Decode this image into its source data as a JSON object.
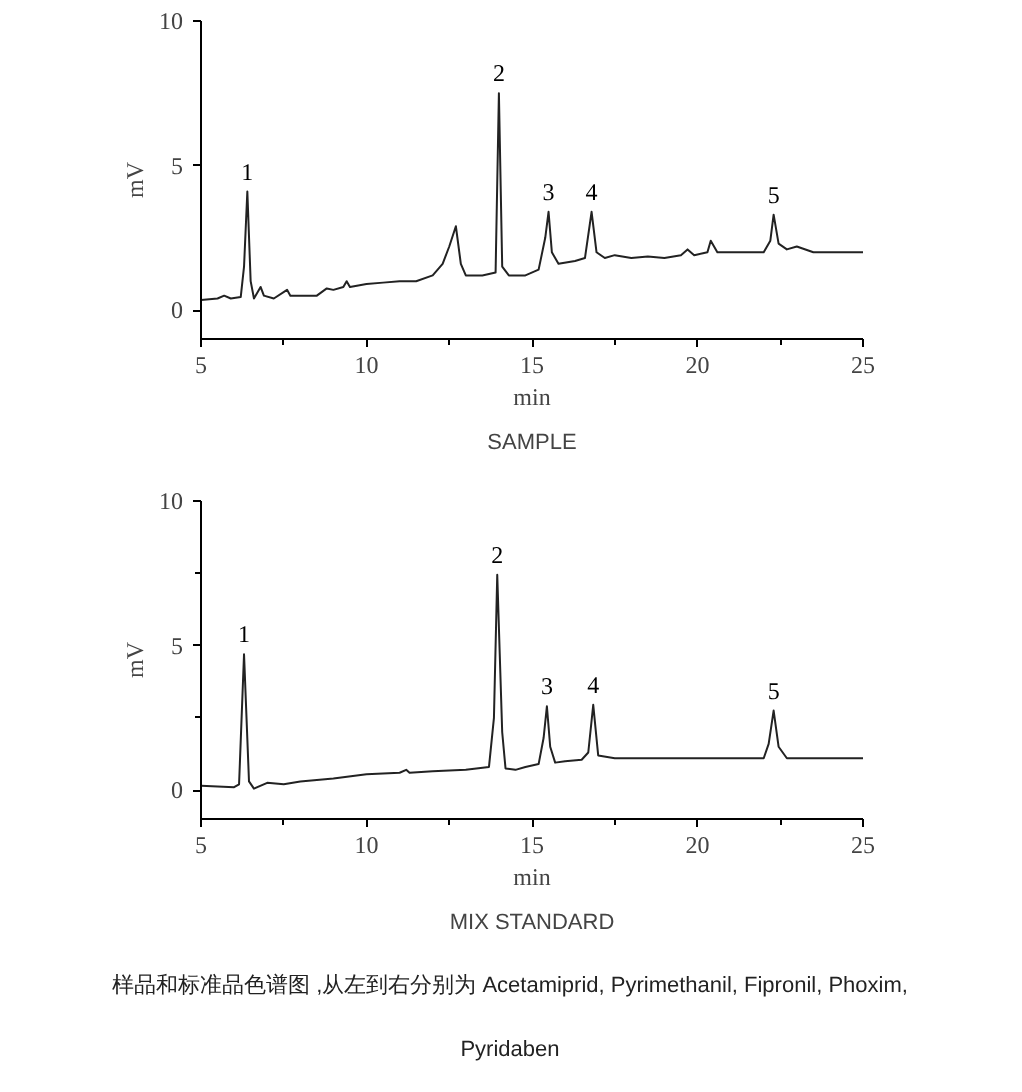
{
  "chart_data": [
    {
      "type": "line",
      "title": "SAMPLE",
      "xlabel": "min",
      "ylabel": "mV",
      "color": "#222222",
      "xlim": [
        5,
        25
      ],
      "ylim": [
        -1,
        10
      ],
      "xticks": [
        5,
        {
          "value": 7.5,
          "label": null
        },
        10,
        {
          "value": 12.5,
          "label": null
        },
        15,
        {
          "value": 17.5,
          "label": null
        },
        20,
        {
          "value": 22.5,
          "label": null
        },
        25
      ],
      "yticks": [
        0,
        5,
        10
      ],
      "x": [
        5.0,
        5.5,
        5.7,
        5.9,
        6.2,
        6.3,
        6.4,
        6.5,
        6.6,
        6.8,
        6.9,
        7.2,
        7.6,
        7.7,
        8.0,
        8.5,
        8.8,
        9.0,
        9.3,
        9.4,
        9.5,
        10.0,
        10.5,
        11.0,
        11.5,
        12.0,
        12.3,
        12.5,
        12.7,
        12.85,
        13.0,
        13.5,
        13.9,
        14.0,
        14.1,
        14.3,
        14.8,
        15.2,
        15.4,
        15.5,
        15.6,
        15.8,
        16.3,
        16.6,
        16.8,
        16.95,
        17.2,
        17.5,
        18.0,
        18.5,
        19.0,
        19.5,
        19.7,
        19.9,
        20.3,
        20.4,
        20.6,
        21.0,
        21.5,
        22.0,
        22.2,
        22.3,
        22.45,
        22.7,
        23.0,
        23.5,
        24.0,
        24.5,
        25.0
      ],
      "values": [
        0.35,
        0.4,
        0.5,
        0.4,
        0.45,
        1.5,
        4.1,
        1.0,
        0.4,
        0.8,
        0.5,
        0.4,
        0.7,
        0.5,
        0.5,
        0.5,
        0.75,
        0.7,
        0.8,
        1.0,
        0.8,
        0.9,
        0.95,
        1.0,
        1.0,
        1.2,
        1.6,
        2.2,
        2.9,
        1.6,
        1.2,
        1.2,
        1.3,
        7.5,
        1.5,
        1.2,
        1.2,
        1.4,
        2.5,
        3.4,
        2.0,
        1.6,
        1.7,
        1.8,
        3.4,
        2.0,
        1.8,
        1.9,
        1.8,
        1.85,
        1.8,
        1.9,
        2.1,
        1.9,
        2.0,
        2.4,
        2.0,
        2.0,
        2.0,
        2.0,
        2.4,
        3.3,
        2.3,
        2.1,
        2.2,
        2.0,
        2.0,
        2.0,
        2.0
      ],
      "annotations": [
        {
          "text": "1",
          "x": 6.4,
          "y": 4.1
        },
        {
          "text": "2",
          "x": 14.0,
          "y": 7.5
        },
        {
          "text": "3",
          "x": 15.5,
          "y": 3.4
        },
        {
          "text": "4",
          "x": 16.8,
          "y": 3.4
        },
        {
          "text": "5",
          "x": 22.3,
          "y": 3.3
        }
      ]
    },
    {
      "type": "line",
      "title": "MIX STANDARD",
      "xlabel": "min",
      "ylabel": "mV",
      "color": "#222222",
      "xlim": [
        5,
        25
      ],
      "ylim": [
        -1,
        10
      ],
      "xticks": [
        5,
        {
          "value": 7.5,
          "label": null
        },
        10,
        {
          "value": 12.5,
          "label": null
        },
        15,
        {
          "value": 17.5,
          "label": null
        },
        20,
        {
          "value": 22.5,
          "label": null
        },
        25
      ],
      "yticks": [
        0,
        {
          "value": 2.5,
          "label": null
        },
        5,
        {
          "value": 7.5,
          "label": null
        },
        10
      ],
      "x": [
        5.0,
        5.5,
        6.0,
        6.15,
        6.3,
        6.45,
        6.6,
        7.0,
        7.5,
        8.0,
        9.0,
        10.0,
        11.0,
        11.2,
        11.3,
        12.0,
        13.0,
        13.7,
        13.85,
        13.95,
        14.1,
        14.2,
        14.5,
        14.8,
        15.2,
        15.35,
        15.45,
        15.55,
        15.7,
        16.0,
        16.5,
        16.7,
        16.85,
        17.0,
        17.5,
        18.0,
        19.0,
        20.0,
        21.0,
        22.0,
        22.15,
        22.3,
        22.45,
        22.7,
        23.0,
        24.0,
        25.0
      ],
      "values": [
        0.15,
        0.12,
        0.1,
        0.2,
        4.7,
        0.3,
        0.05,
        0.25,
        0.2,
        0.3,
        0.4,
        0.55,
        0.6,
        0.7,
        0.6,
        0.65,
        0.7,
        0.8,
        2.5,
        7.45,
        2.0,
        0.75,
        0.7,
        0.8,
        0.9,
        1.8,
        2.9,
        1.5,
        0.95,
        1.0,
        1.05,
        1.3,
        2.95,
        1.2,
        1.1,
        1.1,
        1.1,
        1.1,
        1.1,
        1.1,
        1.6,
        2.75,
        1.5,
        1.1,
        1.1,
        1.1,
        1.1
      ],
      "annotations": [
        {
          "text": "1",
          "x": 6.3,
          "y": 4.7
        },
        {
          "text": "2",
          "x": 13.95,
          "y": 7.45
        },
        {
          "text": "3",
          "x": 15.45,
          "y": 2.9
        },
        {
          "text": "4",
          "x": 16.85,
          "y": 2.95
        },
        {
          "text": "5",
          "x": 22.3,
          "y": 2.75
        },
        "样品和标准品色谱图 ,从左到右分别为 Acetamiprid, Pyrimethanil, Fipronil, Phoxim, Pyridaben"
      ]
    }
  ]
}
